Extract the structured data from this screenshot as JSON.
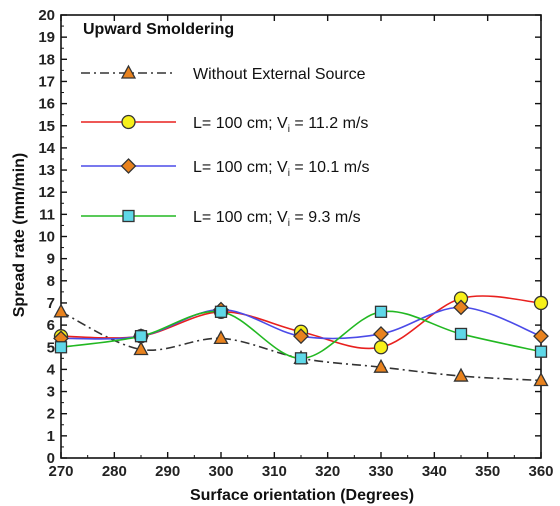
{
  "chart_data": {
    "type": "line",
    "title": "Upward Smoldering",
    "xlabel": "Surface orientation (Degrees)",
    "ylabel": "Spread rate (mm/min)",
    "xlim": [
      270,
      360
    ],
    "ylim": [
      0,
      20
    ],
    "xticks": [
      270,
      280,
      290,
      300,
      310,
      320,
      330,
      340,
      350,
      360
    ],
    "yticks": [
      0,
      1,
      2,
      3,
      4,
      5,
      6,
      7,
      8,
      9,
      10,
      11,
      12,
      13,
      14,
      15,
      16,
      17,
      18,
      19,
      20
    ],
    "grid": false,
    "legend_position": "top-right",
    "series": [
      {
        "name": "Without External Source",
        "line_color": "#333333",
        "line_style": "dash-dot",
        "marker": "triangle",
        "marker_color": "#E8821E",
        "x": [
          270,
          285,
          300,
          315,
          330,
          345,
          360
        ],
        "y": [
          6.6,
          4.9,
          5.4,
          4.5,
          4.1,
          3.7,
          3.5
        ]
      },
      {
        "name": "L= 100 cm; V",
        "name_sub": "i",
        "name_suffix": " = 11.2 m/s",
        "line_color": "#E8201E",
        "line_style": "solid",
        "marker": "circle",
        "marker_color": "#F7F01A",
        "x": [
          270,
          285,
          300,
          315,
          330,
          345,
          360
        ],
        "y": [
          5.5,
          5.5,
          6.6,
          5.7,
          5.0,
          7.2,
          7.0
        ]
      },
      {
        "name": "L= 100 cm; V",
        "name_sub": "i",
        "name_suffix": " = 10.1 m/s",
        "line_color": "#4B4BE8",
        "line_style": "solid",
        "marker": "diamond",
        "marker_color": "#E8821E",
        "x": [
          270,
          285,
          300,
          315,
          330,
          345,
          360
        ],
        "y": [
          5.4,
          5.5,
          6.7,
          5.5,
          5.6,
          6.8,
          5.5
        ]
      },
      {
        "name": "L= 100 cm; V",
        "name_sub": "i",
        "name_suffix": " = 9.3 m/s",
        "line_color": "#22B822",
        "line_style": "solid",
        "marker": "square",
        "marker_color": "#5FD8E8",
        "x": [
          270,
          285,
          300,
          315,
          330,
          345,
          360
        ],
        "y": [
          5.0,
          5.5,
          6.6,
          4.5,
          6.6,
          5.6,
          4.8
        ]
      }
    ]
  }
}
